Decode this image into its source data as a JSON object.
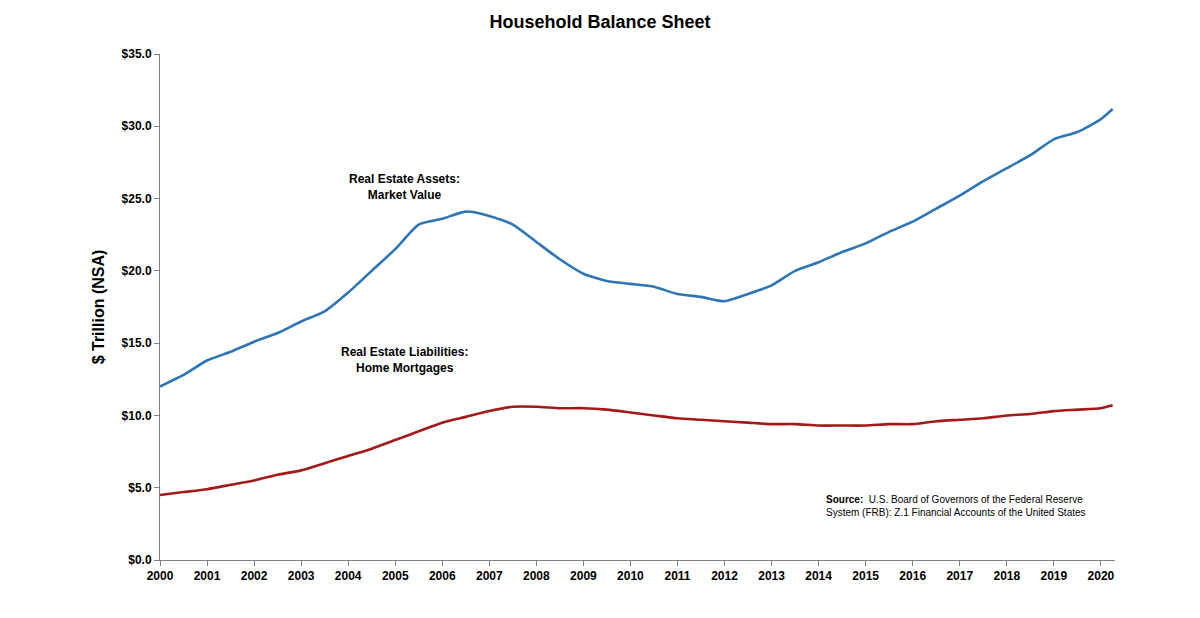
{
  "chart_data": {
    "type": "line",
    "title": "Household Balance Sheet",
    "y_label": "$ Trillion (NSA)",
    "x": [
      2000,
      2000.5,
      2001,
      2001.5,
      2002,
      2002.5,
      2003,
      2003.5,
      2004,
      2004.5,
      2005,
      2005.5,
      2006,
      2006.5,
      2007,
      2007.5,
      2008,
      2008.5,
      2009,
      2009.5,
      2010,
      2010.5,
      2011,
      2011.5,
      2012,
      2012.5,
      2013,
      2013.5,
      2014,
      2014.5,
      2015,
      2015.5,
      2016,
      2016.5,
      2017,
      2017.5,
      2018,
      2018.5,
      2019,
      2019.5,
      2020,
      2020.25
    ],
    "series": [
      {
        "name": "Real Estate Assets:\nMarket Value",
        "color": "#2e75b6",
        "annotation": {
          "x": 2005.2,
          "y": 25.8
        },
        "values": [
          12.0,
          12.8,
          13.8,
          14.4,
          15.1,
          15.7,
          16.5,
          17.2,
          18.5,
          20.0,
          21.5,
          23.2,
          23.6,
          24.1,
          23.8,
          23.2,
          22.0,
          20.8,
          19.8,
          19.3,
          19.1,
          18.9,
          18.4,
          18.2,
          17.9,
          18.4,
          19.0,
          20.0,
          20.6,
          21.3,
          21.9,
          22.7,
          23.4,
          24.3,
          25.2,
          26.2,
          27.1,
          28.0,
          29.1,
          29.6,
          30.5,
          31.2
        ]
      },
      {
        "name": "Real Estate Liabilities:\nHome Mortgages",
        "color": "#a31a1a",
        "annotation": {
          "x": 2005.2,
          "y": 13.8
        },
        "values": [
          4.5,
          4.7,
          4.9,
          5.2,
          5.5,
          5.9,
          6.2,
          6.7,
          7.2,
          7.7,
          8.3,
          8.9,
          9.5,
          9.9,
          10.3,
          10.6,
          10.6,
          10.5,
          10.5,
          10.4,
          10.2,
          10.0,
          9.8,
          9.7,
          9.6,
          9.5,
          9.4,
          9.4,
          9.3,
          9.3,
          9.3,
          9.4,
          9.4,
          9.6,
          9.7,
          9.8,
          10.0,
          10.1,
          10.3,
          10.4,
          10.5,
          10.7
        ]
      }
    ],
    "xlim": [
      2000,
      2020.3
    ],
    "xticks": [
      2000,
      2001,
      2002,
      2003,
      2004,
      2005,
      2006,
      2007,
      2008,
      2009,
      2010,
      2011,
      2012,
      2013,
      2014,
      2015,
      2016,
      2017,
      2018,
      2019,
      2020
    ],
    "ylim": [
      0,
      35
    ],
    "yticks": [
      {
        "value": 0,
        "label": "$0.0"
      },
      {
        "value": 5,
        "label": "$5.0"
      },
      {
        "value": 10,
        "label": "$10.0"
      },
      {
        "value": 15,
        "label": "$15.0"
      },
      {
        "value": 20,
        "label": "$20.0"
      },
      {
        "value": 25,
        "label": "$25.0"
      },
      {
        "value": 30,
        "label": "$30.0"
      },
      {
        "value": 35,
        "label": "$35.0"
      }
    ],
    "grid": false,
    "source": {
      "label": "Source:",
      "text": "U.S. Board of Governors of the Federal Reserve\nSystem (FRB): Z.1 Financial Accounts of the United States"
    }
  }
}
